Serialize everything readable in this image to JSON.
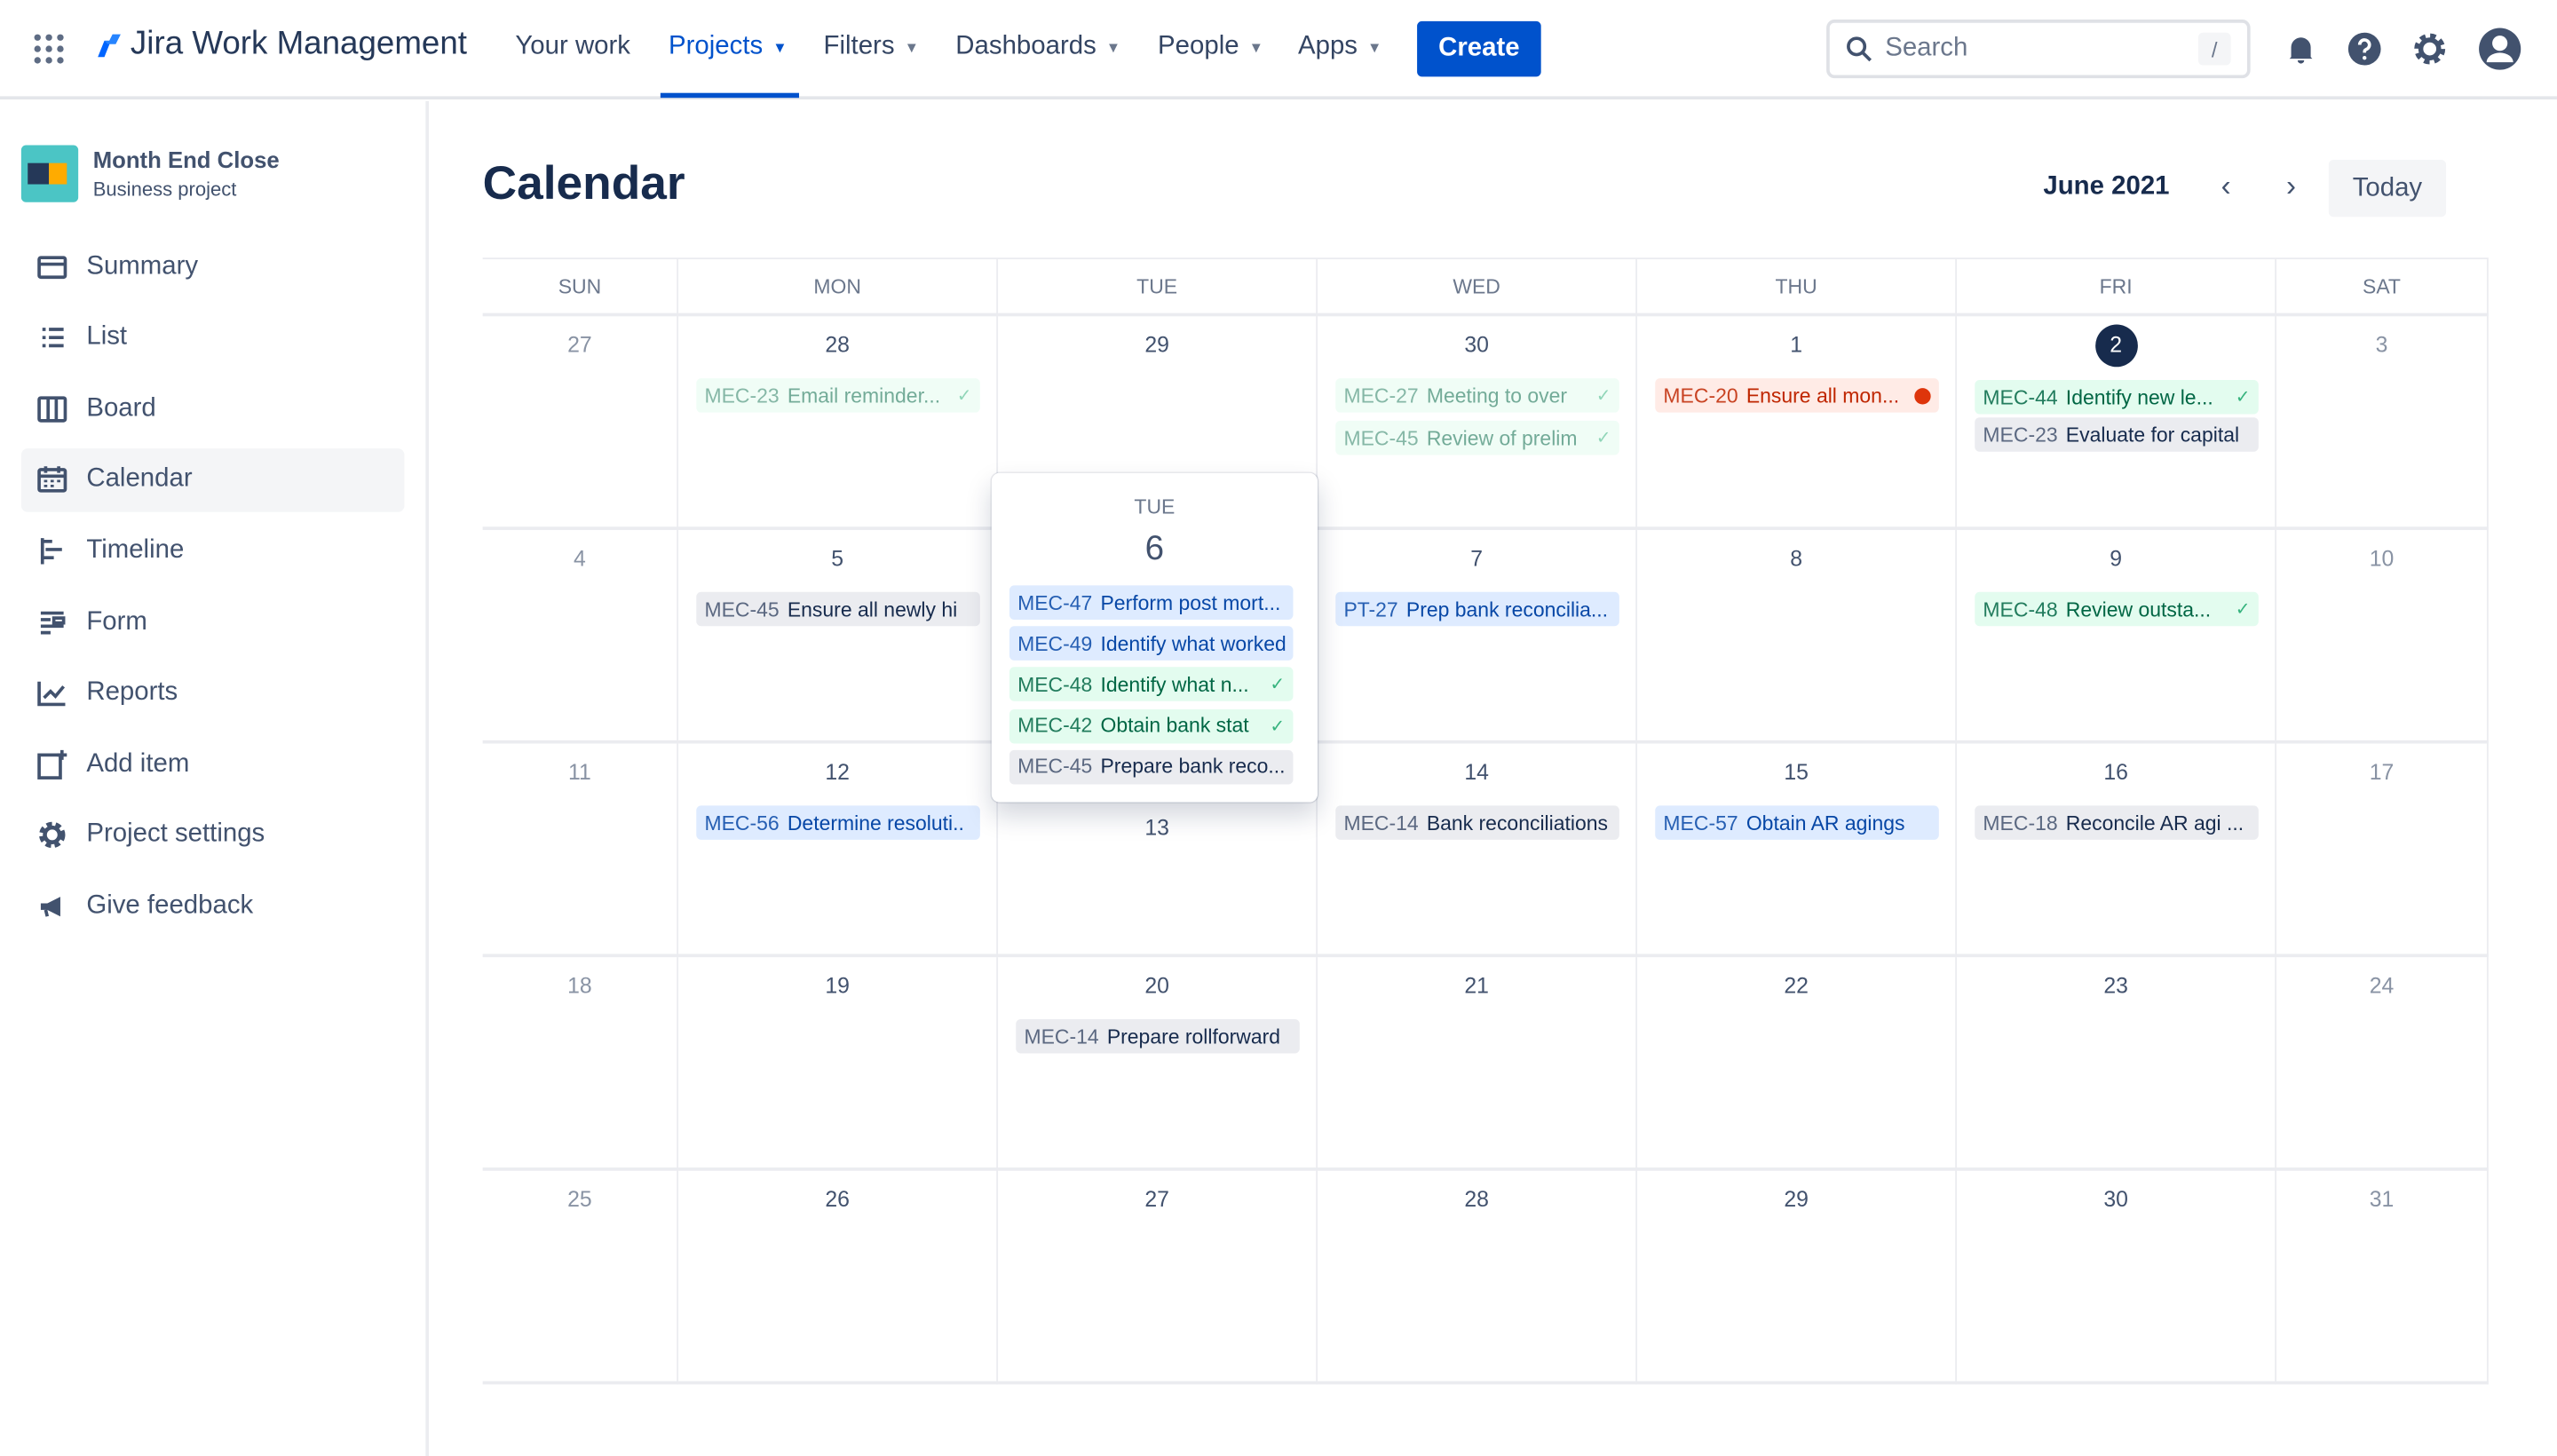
{
  "nav": {
    "brand": "Jira Work Management",
    "items": [
      {
        "label": "Your work",
        "dropdown": false
      },
      {
        "label": "Projects",
        "dropdown": true,
        "active": true
      },
      {
        "label": "Filters",
        "dropdown": true
      },
      {
        "label": "Dashboards",
        "dropdown": true
      },
      {
        "label": "People",
        "dropdown": true
      },
      {
        "label": "Apps",
        "dropdown": true
      }
    ],
    "create": "Create",
    "search_placeholder": "Search",
    "search_shortcut": "/"
  },
  "project": {
    "name": "Month End Close",
    "type": "Business project"
  },
  "sidebar": {
    "items": [
      {
        "label": "Summary",
        "icon": "summary-icon"
      },
      {
        "label": "List",
        "icon": "list-icon"
      },
      {
        "label": "Board",
        "icon": "board-icon"
      },
      {
        "label": "Calendar",
        "icon": "calendar-icon",
        "active": true
      },
      {
        "label": "Timeline",
        "icon": "timeline-icon"
      },
      {
        "label": "Form",
        "icon": "form-icon"
      },
      {
        "label": "Reports",
        "icon": "reports-icon"
      },
      {
        "label": "Add item",
        "icon": "add-item-icon"
      },
      {
        "label": "Project settings",
        "icon": "gear-icon"
      },
      {
        "label": "Give feedback",
        "icon": "megaphone-icon"
      }
    ]
  },
  "page": {
    "title": "Calendar",
    "month": "June 2021",
    "today": "Today"
  },
  "weekdays": [
    "SUN",
    "MON",
    "TUE",
    "WED",
    "THU",
    "FRI",
    "SAT"
  ],
  "weeks": [
    [
      {
        "d": "27",
        "out": true
      },
      {
        "d": "28",
        "events": [
          {
            "key": "MEC-23",
            "summary": "Email reminder...",
            "status": "done",
            "faded": true
          }
        ]
      },
      {
        "d": "29"
      },
      {
        "d": "30",
        "events": [
          {
            "key": "MEC-27",
            "summary": "Meeting to over",
            "status": "done",
            "faded": true
          },
          {
            "key": "MEC-45",
            "summary": "Review of prelim",
            "status": "done",
            "faded": true
          }
        ]
      },
      {
        "d": "1",
        "events": [
          {
            "key": "MEC-20",
            "summary": "Ensure all mon...",
            "status": "overdue"
          }
        ]
      },
      {
        "d": "2",
        "current": true,
        "events": [
          {
            "key": "MEC-44",
            "summary": "Identify new le...",
            "status": "done"
          },
          {
            "key": "MEC-23",
            "summary": "Evaluate for capital",
            "status": "todo"
          }
        ]
      },
      {
        "d": "3"
      }
    ],
    [
      {
        "d": "4"
      },
      {
        "d": "5",
        "events": [
          {
            "key": "MEC-45",
            "summary": "Ensure all newly hi",
            "status": "todo"
          }
        ]
      },
      {
        "d": "6"
      },
      {
        "d": "7",
        "events": [
          {
            "key": "PT-27",
            "summary": "Prep bank reconcilia...",
            "status": "inprogress"
          }
        ]
      },
      {
        "d": "8"
      },
      {
        "d": "9",
        "events": [
          {
            "key": "MEC-48",
            "summary": "Review outsta...",
            "status": "done"
          }
        ]
      },
      {
        "d": "10"
      }
    ],
    [
      {
        "d": "11"
      },
      {
        "d": "12",
        "events": [
          {
            "key": "MEC-56",
            "summary": "Determine resoluti..",
            "status": "inprogress"
          }
        ]
      },
      {
        "d": "13"
      },
      {
        "d": "14",
        "events": [
          {
            "key": "MEC-14",
            "summary": "Bank reconciliations",
            "status": "todo"
          }
        ]
      },
      {
        "d": "15",
        "events": [
          {
            "key": "MEC-57",
            "summary": "Obtain AR agings",
            "status": "inprogress"
          }
        ]
      },
      {
        "d": "16",
        "events": [
          {
            "key": "MEC-18",
            "summary": "Reconcile AR agi ...",
            "status": "todo"
          }
        ]
      },
      {
        "d": "17"
      }
    ],
    [
      {
        "d": "18"
      },
      {
        "d": "19"
      },
      {
        "d": "20",
        "events": [
          {
            "key": "MEC-14",
            "summary": "Prepare rollforward",
            "status": "todo"
          }
        ]
      },
      {
        "d": "21"
      },
      {
        "d": "22"
      },
      {
        "d": "23"
      },
      {
        "d": "24"
      }
    ],
    [
      {
        "d": "25"
      },
      {
        "d": "26"
      },
      {
        "d": "27"
      },
      {
        "d": "28"
      },
      {
        "d": "29"
      },
      {
        "d": "30"
      },
      {
        "d": "31"
      }
    ]
  ],
  "popover": {
    "weekday": "TUE",
    "day": "6",
    "events": [
      {
        "key": "MEC-47",
        "summary": "Perform post mort...",
        "status": "inprogress"
      },
      {
        "key": "MEC-49",
        "summary": "Identify what worked",
        "status": "inprogress"
      },
      {
        "key": "MEC-48",
        "summary": "Identify what n...",
        "status": "done"
      },
      {
        "key": "MEC-42",
        "summary": "Obtain bank stat",
        "status": "done"
      },
      {
        "key": "MEC-45",
        "summary": "Prepare bank reco...",
        "status": "todo"
      }
    ]
  },
  "colors": {
    "brand": "#0052cc",
    "done": "#e3fcef",
    "inprogress": "#deebff",
    "todo": "#ebecf0",
    "overdue": "#ffebe6"
  }
}
